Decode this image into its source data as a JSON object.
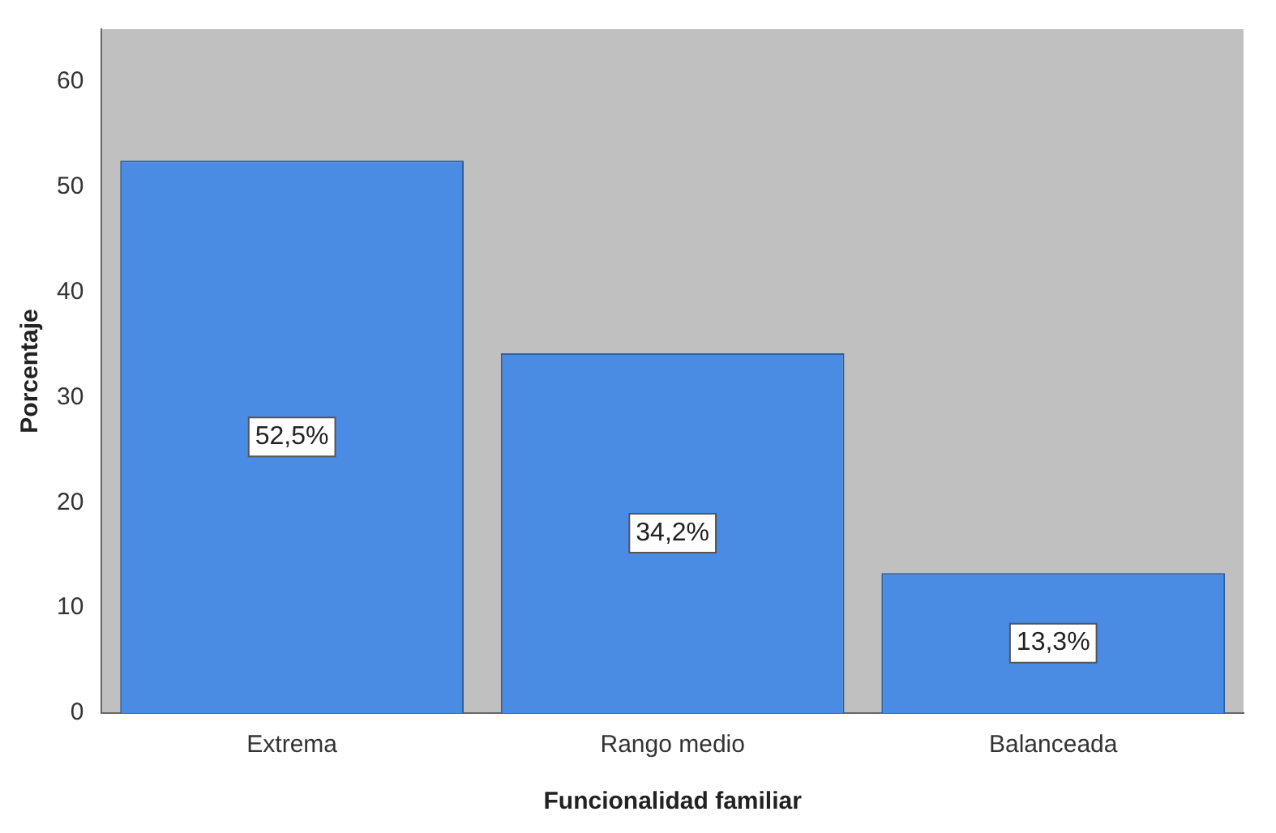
{
  "chart_data": {
    "type": "bar",
    "xlabel": "Funcionalidad familiar",
    "ylabel": "Porcentaje",
    "categories": [
      "Extrema",
      "Rango medio",
      "Balanceada"
    ],
    "values": [
      52.5,
      34.2,
      13.3
    ],
    "value_labels": [
      "52,5%",
      "34,2%",
      "13,3%"
    ],
    "color": "#4a8be3",
    "ylim": [
      0,
      65
    ],
    "yticks": [
      0,
      10,
      20,
      30,
      40,
      50,
      60
    ],
    "grid": false,
    "legend": false
  }
}
